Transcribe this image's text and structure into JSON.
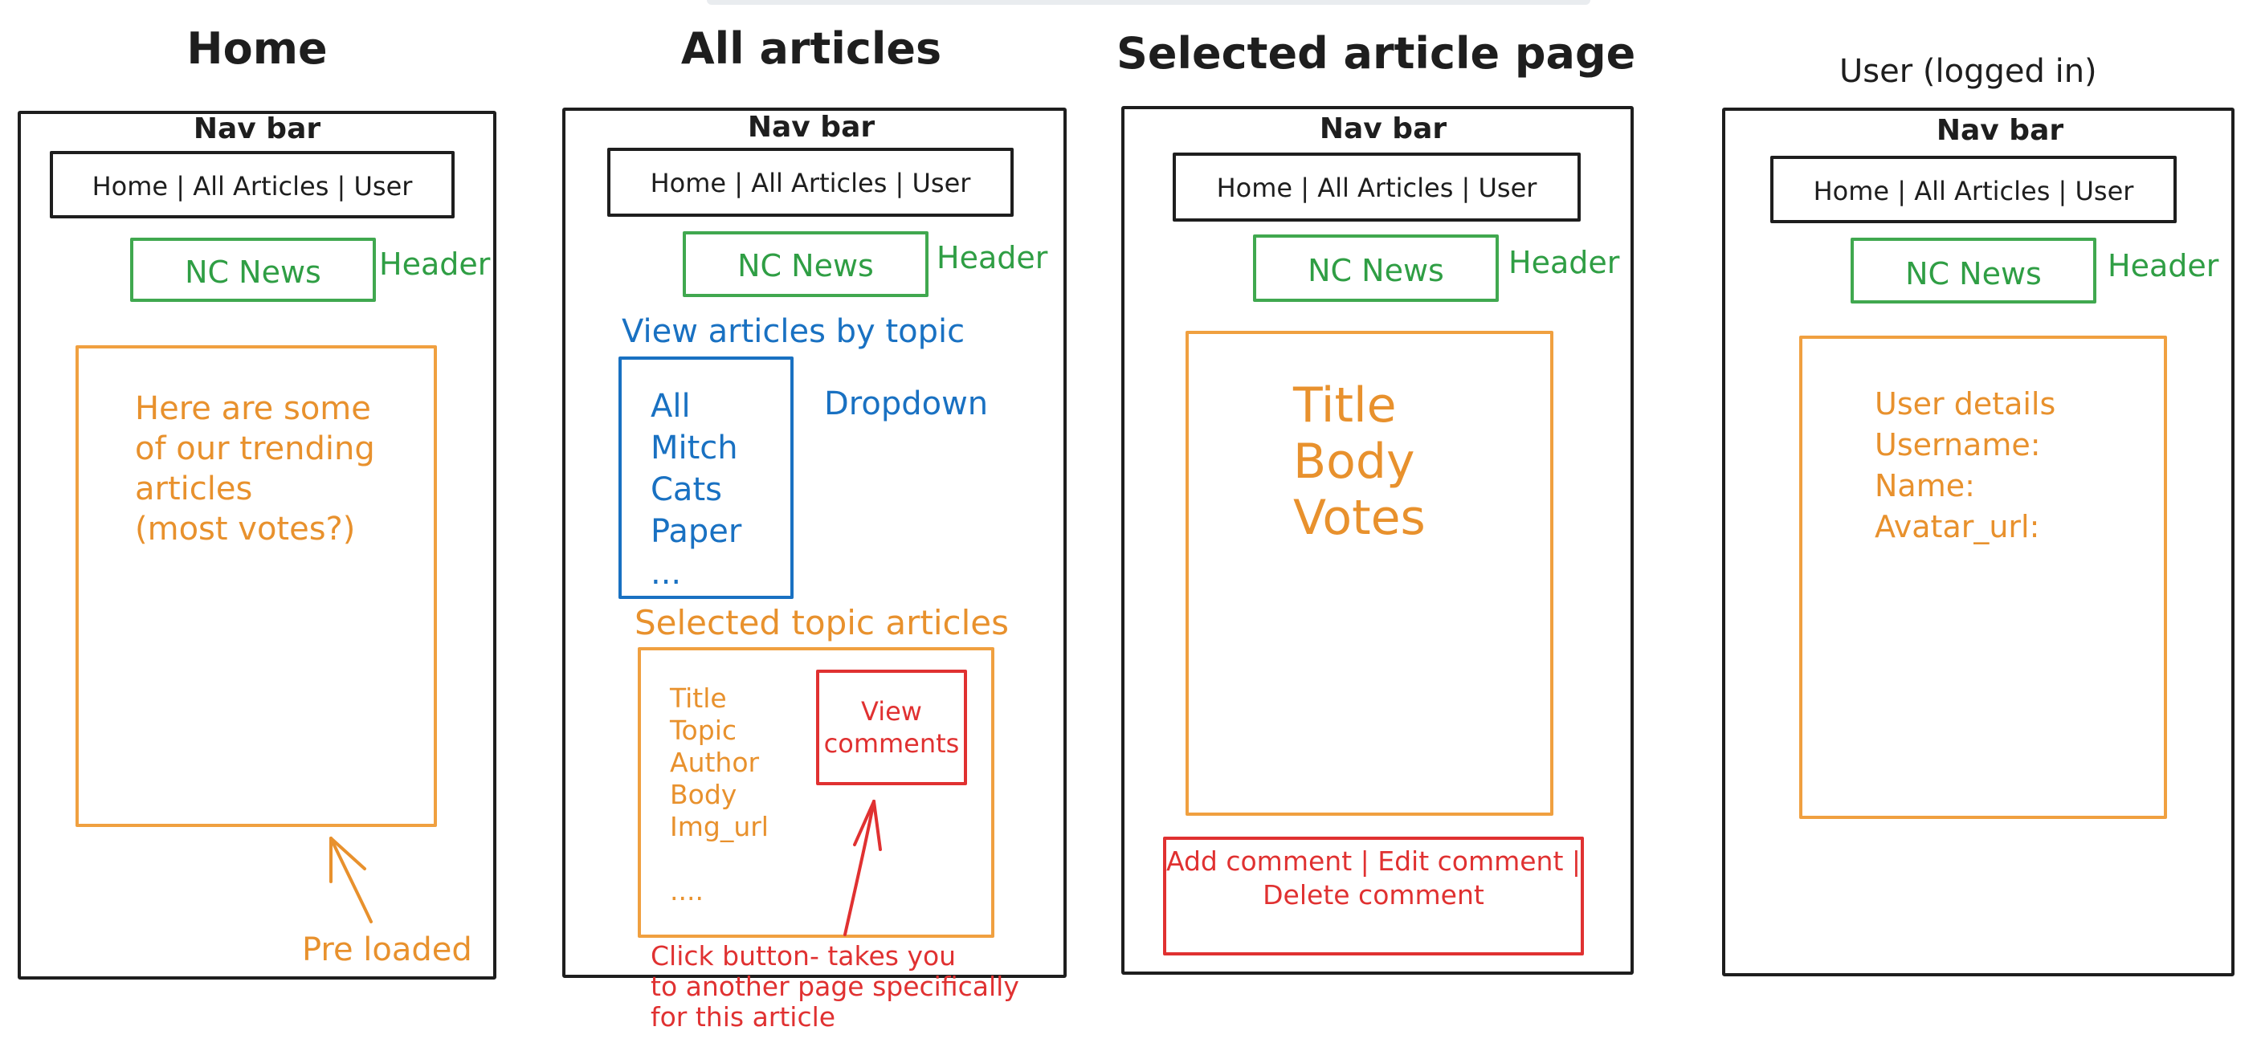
{
  "columns": [
    {
      "title": "Home",
      "nav_label": "Nav bar",
      "nav_links": "Home | All Articles | User",
      "header_box": "NC News",
      "header_label": "Header",
      "content_lines": [
        "Here are some",
        "of our trending",
        "articles",
        "(most votes?)"
      ],
      "annotation": "Pre loaded"
    },
    {
      "title": "All articles",
      "nav_label": "Nav bar",
      "nav_links": "Home | All Articles | User",
      "header_box": "NC News",
      "header_label": "Header",
      "topic_heading": "View articles by topic",
      "dropdown_items": [
        "All",
        "Mitch",
        "Cats",
        "Paper",
        "..."
      ],
      "dropdown_label": "Dropdown",
      "selected_heading": "Selected topic articles",
      "article_fields": [
        "Title",
        "Topic",
        "Author",
        "Body",
        "Img_url",
        "",
        "...."
      ],
      "comments_button": [
        "View",
        "comments"
      ],
      "annotation_lines": [
        "Click button- takes you",
        "to another page specifically",
        "for this article"
      ]
    },
    {
      "title": "Selected article page",
      "nav_label": "Nav bar",
      "nav_links": "Home | All Articles | User",
      "header_box": "NC News",
      "header_label": "Header",
      "content_lines": [
        "Title",
        "Body",
        "Votes"
      ],
      "actions_lines": [
        "Add comment | Edit comment |",
        "Delete comment"
      ]
    },
    {
      "title": "User (logged in)",
      "nav_label": "Nav bar",
      "nav_links": "Home | All Articles | User",
      "header_box": "NC News",
      "header_label": "Header",
      "content_lines": [
        "User details",
        "Username:",
        "Name:",
        "Avatar_url:"
      ]
    }
  ],
  "colors": {
    "outline": "#1e1e1e",
    "header": "#2f9e44",
    "content": "#e8912d",
    "topic": "#1971c2",
    "action": "#e03131"
  }
}
